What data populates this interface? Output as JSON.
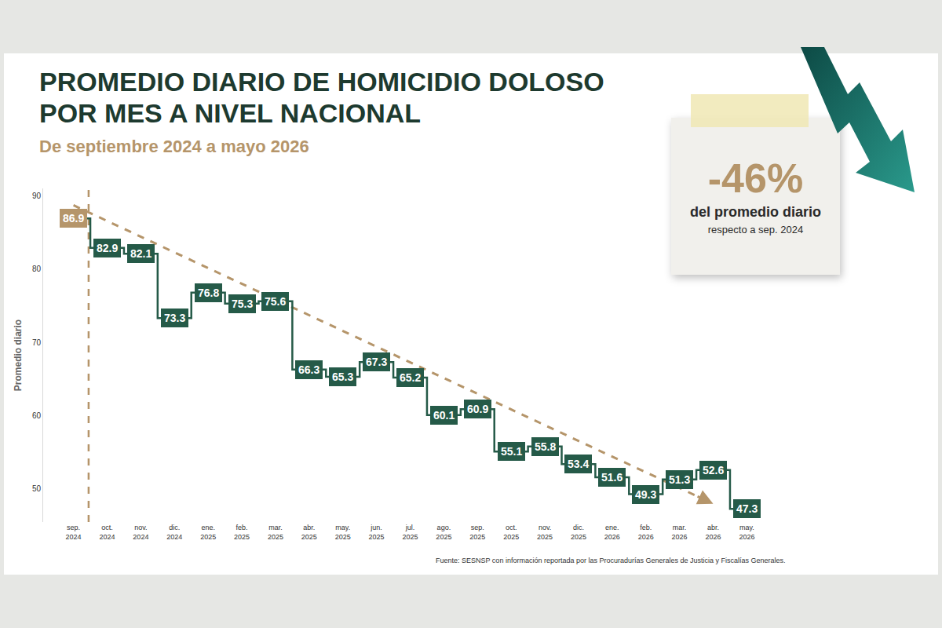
{
  "chart_data": {
    "type": "line",
    "title": "PROMEDIO DIARIO DE HOMICIDIO DOLOSO POR MES A NIVEL NACIONAL",
    "subtitle": "De septiembre 2024 a mayo 2026",
    "y_label": "Promedio diario",
    "categories": [
      "sep. 2024",
      "oct. 2024",
      "nov. 2024",
      "dic. 2024",
      "ene. 2025",
      "feb. 2025",
      "mar. 2025",
      "abr. 2025",
      "may. 2025",
      "jun. 2025",
      "jul. 2025",
      "ago. 2025",
      "sep. 2025",
      "oct. 2025",
      "nov. 2025",
      "dic. 2025",
      "ene. 2026",
      "feb. 2026",
      "mar. 2026",
      "abr. 2026",
      "may. 2026"
    ],
    "values": [
      86.9,
      82.9,
      82.1,
      73.3,
      76.8,
      75.3,
      75.6,
      66.3,
      65.3,
      67.3,
      65.2,
      60.1,
      60.9,
      55.1,
      55.8,
      53.4,
      51.6,
      49.3,
      51.3,
      52.6,
      47.3
    ],
    "color": "#255a48",
    "colors": [
      "#b5956a",
      "#255a48",
      "#255a48",
      "#255a48",
      "#255a48",
      "#255a48",
      "#255a48",
      "#255a48",
      "#255a48",
      "#255a48",
      "#255a48",
      "#255a48",
      "#255a48",
      "#255a48",
      "#255a48",
      "#255a48",
      "#255a48",
      "#255a48",
      "#255a48",
      "#255a48",
      "#255a48"
    ],
    "line_style": "step",
    "data_labels": true,
    "grid": false,
    "ylim": [
      45.5,
      91
    ],
    "yticks": [
      50,
      60,
      70,
      80,
      90
    ],
    "trend": {
      "categories": [
        "sep. 2024",
        "abr. 2026"
      ],
      "values": [
        88.7,
        48.0
      ],
      "color": "#b5956a",
      "line_style": "dashed"
    },
    "callout": {
      "label": "-46%",
      "text": "del promedio diario",
      "note": "respecto a sep. 2024"
    },
    "source": "Fuente: SESNSP con información reportada por las Procuradurías Generales de Justicia y Fiscalías Generales."
  }
}
